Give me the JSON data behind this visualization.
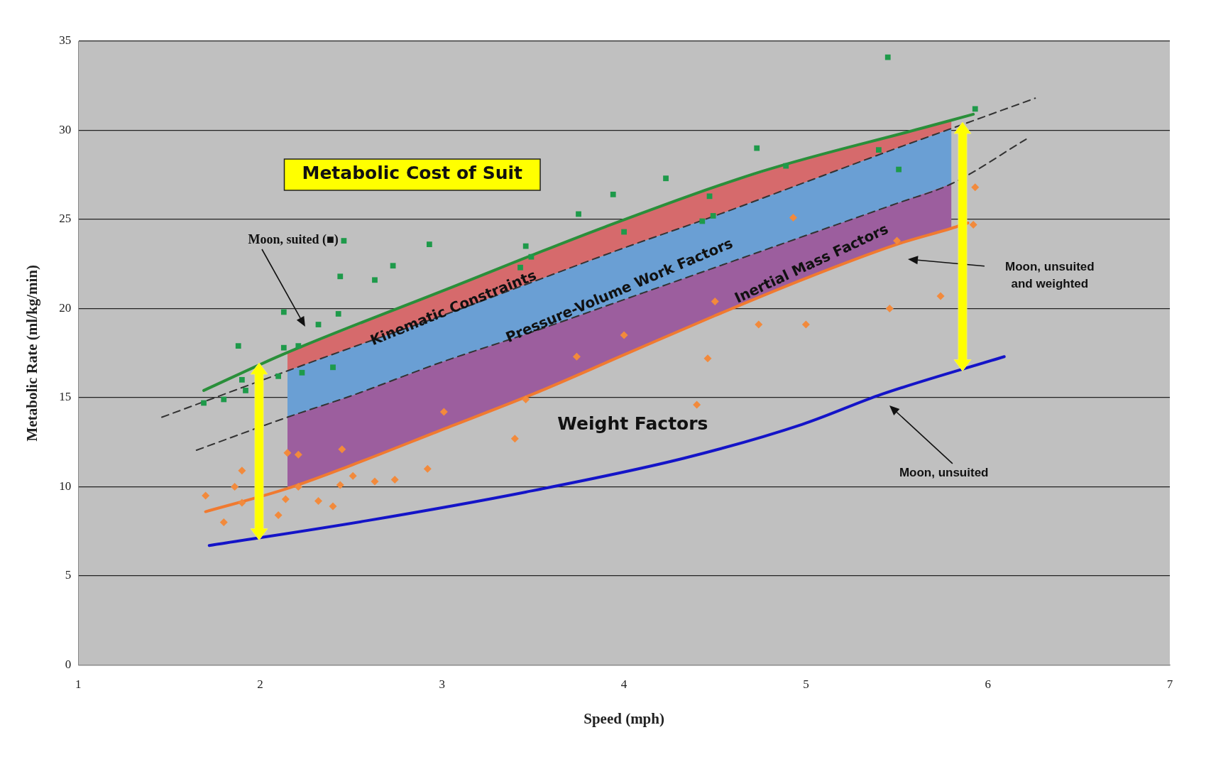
{
  "chart_data": {
    "type": "scatter",
    "xlabel": "Speed (mph)",
    "ylabel": "Metabolic Rate (ml/kg/min)",
    "xlim": [
      1,
      7
    ],
    "ylim": [
      0,
      35
    ],
    "xticks": [
      1,
      2,
      3,
      4,
      5,
      6,
      7
    ],
    "yticks": [
      0,
      5,
      10,
      15,
      20,
      25,
      30,
      35
    ],
    "grid": "y",
    "annotations": [
      "Metabolic Cost of Suit",
      "Moon, suited (■)",
      "Moon, unsuited and weighted",
      "Moon, unsuited",
      "Weight Factors",
      "Kinematic Constraints",
      "Pressure-Volume Work Factors",
      "Inertial Mass Factors"
    ],
    "series": [
      {
        "type": "scatter",
        "color": "#1e9a4a",
        "marker": "square",
        "x": [
          1.69,
          1.8,
          1.88,
          1.9,
          1.92,
          2.1,
          2.13,
          2.13,
          2.21,
          2.32,
          2.43,
          2.44,
          2.46,
          2.63,
          2.73,
          2.93,
          3.46,
          3.75,
          3.94,
          4.23,
          4.73,
          5.45,
          5.51,
          5.93,
          2.23,
          2.4,
          3.43,
          3.49,
          4.0,
          4.43,
          4.47,
          4.49,
          4.89,
          5.4
        ],
        "values": [
          14.7,
          14.9,
          17.9,
          16.0,
          15.4,
          16.2,
          19.8,
          17.8,
          17.9,
          19.1,
          19.7,
          21.8,
          23.8,
          21.6,
          22.4,
          23.6,
          23.5,
          25.3,
          26.4,
          27.3,
          29.0,
          34.1,
          27.8,
          31.2,
          16.4,
          16.7,
          22.3,
          22.9,
          24.3,
          24.9,
          26.3,
          25.2,
          28.0,
          28.9
        ]
      },
      {
        "type": "scatter",
        "color": "#f28a3c",
        "marker": "diamond",
        "x": [
          1.7,
          1.8,
          1.86,
          1.9,
          1.9,
          2.1,
          2.14,
          2.21,
          2.32,
          2.4,
          2.44,
          2.51,
          2.63,
          2.74,
          2.92,
          3.01,
          3.4,
          3.46,
          4.4,
          4.46,
          4.74,
          5.0,
          5.46,
          5.74,
          5.93,
          2.15,
          2.21,
          2.45,
          3.74,
          4.0,
          4.5,
          4.93,
          5.5,
          5.92
        ],
        "values": [
          9.5,
          8.0,
          10.0,
          10.9,
          9.1,
          8.4,
          9.3,
          10.0,
          9.2,
          8.9,
          10.1,
          10.6,
          10.3,
          10.4,
          11.0,
          14.2,
          12.7,
          14.9,
          14.6,
          17.2,
          19.1,
          19.1,
          20.0,
          20.7,
          26.8,
          11.9,
          11.8,
          12.1,
          17.3,
          18.5,
          20.4,
          25.1,
          23.8,
          24.7
        ]
      },
      {
        "type": "line",
        "color": "#2a8f3a",
        "marker": "none",
        "line_style": "solid",
        "x": [
          1.69,
          2.12,
          3.03,
          3.9,
          4.76,
          5.63,
          5.92
        ],
        "values": [
          15.4,
          17.4,
          21.1,
          24.6,
          27.7,
          30.1,
          30.9
        ]
      },
      {
        "type": "line",
        "color": "#f07a30",
        "marker": "none",
        "line_style": "solid",
        "x": [
          1.7,
          2.15,
          2.5,
          3,
          3.5,
          4,
          4.5,
          5,
          5.5,
          5.8,
          5.89
        ],
        "values": [
          8.6,
          9.9,
          11.2,
          13.2,
          15.2,
          17.4,
          19.6,
          21.7,
          23.6,
          24.5,
          24.8
        ],
        "lower": [
          null,
          9.9,
          11.2,
          13.2,
          15.2,
          17.4,
          19.6,
          21.7,
          23.6,
          24.5,
          null
        ],
        "upper": [
          null,
          13.9,
          15.1,
          17.0,
          18.7,
          20.5,
          22.3,
          24.1,
          25.9,
          27.0,
          null
        ]
      },
      {
        "type": "line",
        "color": "#1414c8",
        "marker": "none",
        "line_style": "solid",
        "x": [
          1.72,
          2.59,
          3.46,
          4.33,
          4.98,
          5.42,
          6.09
        ],
        "values": [
          6.7,
          8.1,
          9.7,
          11.6,
          13.5,
          15.2,
          17.3
        ]
      },
      {
        "type": "line",
        "color": "#333333",
        "marker": "none",
        "line_style": "dashed",
        "x": [
          1.46,
          2.15,
          2.5,
          3,
          3.5,
          4,
          4.5,
          5,
          5.5,
          5.8,
          6.26
        ],
        "values": [
          13.9,
          16.5,
          17.8,
          19.6,
          21.5,
          23.4,
          25.2,
          27.1,
          29.0,
          30.1,
          31.8
        ],
        "lower": [
          null,
          16.5,
          17.8,
          19.6,
          21.5,
          23.4,
          25.2,
          27.1,
          29.0,
          30.1,
          null
        ],
        "upper": [
          null,
          17.5,
          18.9,
          21.0,
          23.0,
          25.0,
          26.8,
          28.4,
          29.8,
          30.6,
          null
        ]
      },
      {
        "type": "line",
        "color": "#333333",
        "marker": "none",
        "line_style": "dashed",
        "x": [
          1.65,
          2.15,
          2.5,
          3,
          3.5,
          4,
          4.5,
          5,
          5.5,
          5.8,
          6.21
        ],
        "values": [
          12.05,
          13.9,
          15.1,
          17.0,
          18.7,
          20.5,
          22.3,
          24.1,
          25.9,
          27.0,
          29.5
        ],
        "lower": [
          null,
          13.9,
          15.1,
          17.0,
          18.7,
          20.5,
          22.3,
          24.1,
          25.9,
          27.0,
          null
        ],
        "upper": [
          null,
          16.5,
          17.8,
          19.6,
          21.5,
          23.4,
          25.2,
          27.1,
          29.0,
          30.1,
          null
        ]
      }
    ]
  }
}
